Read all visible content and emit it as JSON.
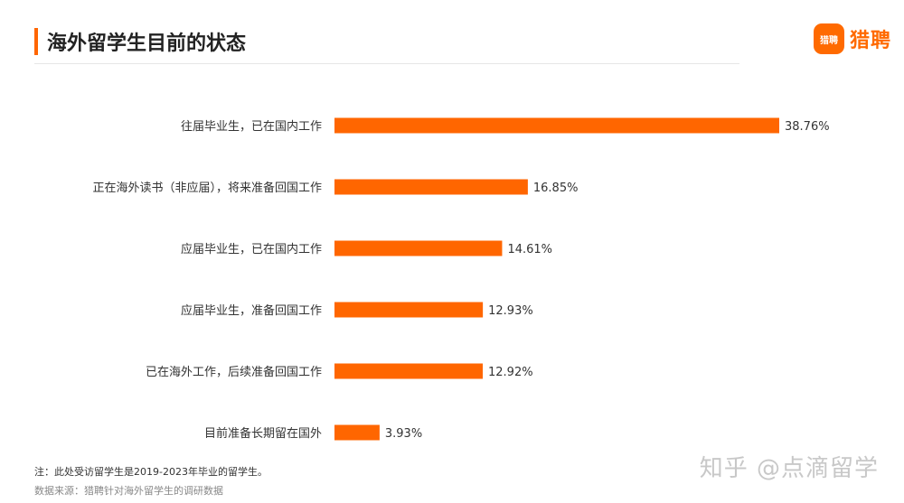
{
  "header": {
    "title": "海外留学生目前的状态",
    "brand_logo_text": "猎聘",
    "brand_name": "猎聘"
  },
  "chart_data": {
    "type": "bar",
    "orientation": "horizontal",
    "categories": [
      "往届毕业生，已在国内工作",
      "正在海外读书（非应届），将来准备回国工作",
      "应届毕业生，已在国内工作",
      "应届毕业生，准备回国工作",
      "已在海外工作，后续准备回国工作",
      "目前准备长期留在国外"
    ],
    "values": [
      38.76,
      16.85,
      14.61,
      12.93,
      12.92,
      3.93
    ],
    "value_labels": [
      "38.76%",
      "16.85%",
      "14.61%",
      "12.93%",
      "12.92%",
      "3.93%"
    ],
    "unit": "%",
    "bar_color": "#ff6600",
    "title": "海外留学生目前的状态",
    "grid": false,
    "legend": "none"
  },
  "footer": {
    "note": "注：此处受访留学生是2019-2023年毕业的留学生。",
    "source": "数据来源：猎聘针对海外留学生的调研数据"
  },
  "watermark": "知乎 @点滴留学"
}
